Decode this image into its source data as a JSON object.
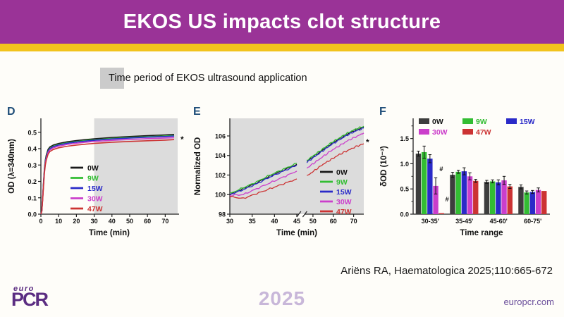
{
  "slide": {
    "title": "EKOS US impacts clot structure",
    "shade_legend": "Time period of EKOS ultrasound application",
    "citation": "Ariëns RA, Haematologica 2025;110:665-672",
    "footer": {
      "logo_top": "euro",
      "logo_main": "PCR",
      "year": "2025",
      "website": "europcr.com"
    }
  },
  "colors": {
    "header_purple": "#9a3397",
    "gold": "#f2c31c",
    "panel_letter_blue": "#1f4e79",
    "shade_region": "#dcdcdc",
    "shade_swatch": "#cbcbcb",
    "logo_purple": "#5b2d82",
    "year_lavender": "#c8b7d9",
    "website_purple": "#6b4f9b",
    "series_0W": "#1a1a1a",
    "series_9W": "#33bd33",
    "series_15W": "#2a2ac8",
    "series_30W": "#cb3ecb",
    "series_47W": "#cc3333"
  },
  "chart_data": [
    {
      "id": "D",
      "type": "line",
      "xlabel": "Time (min)",
      "ylabel": "OD (λ=340nm)",
      "xlim": [
        0,
        77
      ],
      "ylim": [
        0,
        0.585
      ],
      "xticks": [
        0,
        10,
        20,
        30,
        40,
        50,
        60,
        70
      ],
      "yticks": [
        0,
        0.1,
        0.2,
        0.3,
        0.4,
        0.5
      ],
      "ytick_labels": [
        "0.0",
        "0.1",
        "0.2",
        "0.3",
        "0.4",
        "0.5"
      ],
      "grid": false,
      "legend_position": "lower-left-inside",
      "shaded_region": [
        30,
        77
      ],
      "annotation": "*",
      "x": [
        0,
        0.5,
        1,
        1.5,
        2,
        2.5,
        3,
        4,
        5,
        7,
        10,
        15,
        20,
        25,
        30,
        40,
        50,
        60,
        70,
        75
      ],
      "series": [
        {
          "name": "0W",
          "color": "#1a1a1a",
          "values": [
            0,
            0.02,
            0.1,
            0.2,
            0.28,
            0.33,
            0.36,
            0.395,
            0.41,
            0.422,
            0.432,
            0.442,
            0.449,
            0.455,
            0.46,
            0.468,
            0.474,
            0.479,
            0.484,
            0.487
          ]
        },
        {
          "name": "9W",
          "color": "#33bd33",
          "values": [
            0,
            0.02,
            0.095,
            0.19,
            0.27,
            0.32,
            0.35,
            0.385,
            0.402,
            0.415,
            0.425,
            0.436,
            0.443,
            0.449,
            0.454,
            0.462,
            0.468,
            0.473,
            0.477,
            0.48
          ]
        },
        {
          "name": "15W",
          "color": "#2a2ac8",
          "values": [
            0,
            0.02,
            0.095,
            0.19,
            0.265,
            0.315,
            0.347,
            0.382,
            0.399,
            0.412,
            0.422,
            0.433,
            0.44,
            0.446,
            0.451,
            0.459,
            0.465,
            0.47,
            0.474,
            0.477
          ]
        },
        {
          "name": "30W",
          "color": "#cb3ecb",
          "values": [
            0,
            0.018,
            0.09,
            0.18,
            0.26,
            0.31,
            0.34,
            0.375,
            0.392,
            0.405,
            0.415,
            0.426,
            0.433,
            0.439,
            0.444,
            0.451,
            0.456,
            0.461,
            0.465,
            0.467
          ]
        },
        {
          "name": "47W",
          "color": "#cc3333",
          "values": [
            0,
            0.018,
            0.085,
            0.175,
            0.25,
            0.3,
            0.33,
            0.365,
            0.382,
            0.395,
            0.405,
            0.415,
            0.422,
            0.427,
            0.432,
            0.439,
            0.444,
            0.448,
            0.452,
            0.455
          ]
        }
      ]
    },
    {
      "id": "E",
      "type": "line",
      "xlabel": "Time (min)",
      "ylabel": "Normalized OD",
      "xlim": [
        30,
        75
      ],
      "ylim": [
        98,
        107.8
      ],
      "axis_break": [
        45,
        47
      ],
      "xticks": [
        30,
        35,
        40,
        45,
        50,
        60,
        70
      ],
      "yticks": [
        98,
        100,
        102,
        104,
        106
      ],
      "ytick_labels": [
        "98",
        "100",
        "102",
        "104",
        "106"
      ],
      "grid": false,
      "legend_position": "lower-right-inside",
      "shaded_region": "full",
      "annotation": "*",
      "x1": [
        30,
        33,
        36,
        39,
        42,
        45
      ],
      "x2": [
        47,
        51,
        55,
        59,
        63,
        67,
        71,
        75
      ],
      "series": [
        {
          "name": "0W",
          "color": "#1a1a1a",
          "values1": [
            100.0,
            100.6,
            101.2,
            101.9,
            102.5,
            103.1
          ],
          "values2": [
            103.4,
            104.0,
            104.6,
            105.2,
            105.7,
            106.2,
            106.6,
            106.9
          ]
        },
        {
          "name": "9W",
          "color": "#33bd33",
          "values1": [
            100.1,
            100.7,
            101.3,
            102.0,
            102.6,
            103.2
          ],
          "values2": [
            103.5,
            104.1,
            104.7,
            105.3,
            105.8,
            106.3,
            106.7,
            107.0
          ]
        },
        {
          "name": "15W",
          "color": "#2a2ac8",
          "values1": [
            100.0,
            100.5,
            101.1,
            101.8,
            102.4,
            103.0
          ],
          "values2": [
            103.3,
            103.9,
            104.5,
            105.1,
            105.6,
            106.1,
            106.5,
            106.8
          ]
        },
        {
          "name": "30W",
          "color": "#cb3ecb",
          "values1": [
            99.9,
            100.0,
            100.6,
            101.2,
            101.8,
            102.4
          ],
          "values2": [
            102.7,
            103.3,
            103.9,
            104.5,
            105.0,
            105.5,
            105.9,
            106.3
          ]
        },
        {
          "name": "47W",
          "color": "#cc3333",
          "values1": [
            99.8,
            99.6,
            100.1,
            100.6,
            101.1,
            101.6
          ],
          "values2": [
            101.9,
            102.5,
            103.1,
            103.6,
            104.1,
            104.5,
            104.9,
            105.2
          ]
        }
      ]
    },
    {
      "id": "F",
      "type": "bar",
      "xlabel": "Time range",
      "ylabel": "δOD (10⁻³)",
      "ylim": [
        0,
        1.9
      ],
      "yticks": [
        0,
        0.5,
        1.0,
        1.5
      ],
      "ytick_labels": [
        "0.0",
        "0.5",
        "1.0",
        "1.5"
      ],
      "minor_ytick_step": 0.25,
      "grid": false,
      "legend_position": "top-inside-two-rows",
      "categories": [
        "30-35'",
        "35-45'",
        "45-60'",
        "60-75'"
      ],
      "series": [
        {
          "name": "0W",
          "color": "#3d3d3d",
          "values": [
            1.2,
            0.78,
            0.64,
            0.54
          ],
          "errors": [
            0.05,
            0.05,
            0.03,
            0.04
          ]
        },
        {
          "name": "9W",
          "color": "#33bd33",
          "values": [
            1.23,
            0.84,
            0.65,
            0.43
          ],
          "errors": [
            0.12,
            0.03,
            0.03,
            0.03
          ]
        },
        {
          "name": "15W",
          "color": "#2a2ac8",
          "values": [
            1.1,
            0.85,
            0.63,
            0.44
          ],
          "errors": [
            0.08,
            0.07,
            0.05,
            0.03
          ]
        },
        {
          "name": "30W",
          "color": "#cb3ecb",
          "values": [
            0.56,
            0.75,
            0.67,
            0.48
          ],
          "errors": [
            0.16,
            0.07,
            0.08,
            0.04
          ]
        },
        {
          "name": "47W",
          "color": "#cc3333",
          "values": [
            0.02,
            0.66,
            0.55,
            0.46
          ],
          "errors": [
            0.02,
            0.03,
            0.04,
            0.02
          ]
        }
      ],
      "hash_annotations": [
        {
          "text": "#",
          "category": 0,
          "series": 3,
          "y": 0.85
        },
        {
          "text": "#",
          "category": 0,
          "series": 4,
          "y": 0.25
        }
      ]
    }
  ]
}
